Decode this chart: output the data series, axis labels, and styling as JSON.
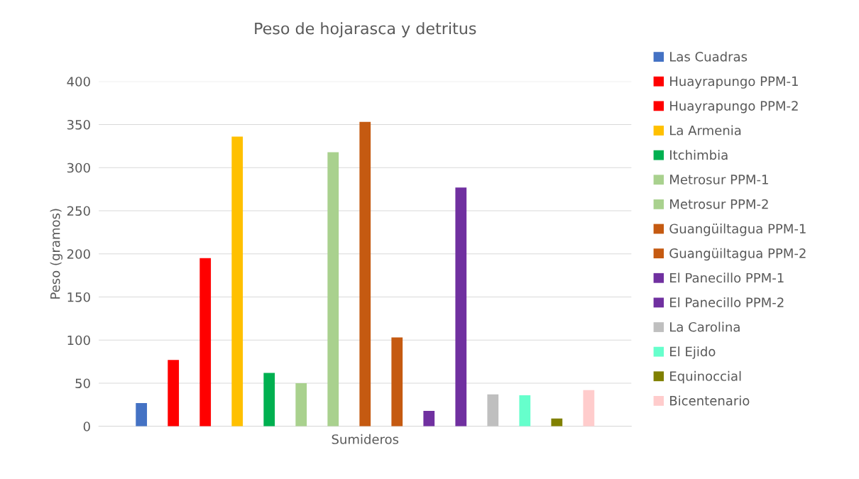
{
  "chart_data": {
    "type": "bar",
    "title": "Peso de hojarasca y detritus",
    "ylabel": "Peso (gramos)",
    "categories": [
      "Sumideros"
    ],
    "series": [
      {
        "name": "Las Cuadras",
        "color": "#4472c4",
        "values": [
          27
        ]
      },
      {
        "name": "Huayrapungo PPM-1",
        "color": "#ff0000",
        "values": [
          77
        ]
      },
      {
        "name": "Huayrapungo PPM-2",
        "color": "#ff0000",
        "values": [
          195
        ]
      },
      {
        "name": "La Armenia",
        "color": "#ffc000",
        "values": [
          336
        ]
      },
      {
        "name": "Itchimbia",
        "color": "#00b050",
        "values": [
          62
        ]
      },
      {
        "name": "Metrosur PPM-1",
        "color": "#a9d18e",
        "values": [
          50
        ]
      },
      {
        "name": "Metrosur PPM-2",
        "color": "#a9d18e",
        "values": [
          318
        ]
      },
      {
        "name": "Guangüiltagua PPM-1",
        "color": "#c55a11",
        "values": [
          353
        ]
      },
      {
        "name": "Guangüiltagua PPM-2",
        "color": "#c55a11",
        "values": [
          103
        ]
      },
      {
        "name": "El Panecillo PPM-1",
        "color": "#7030a0",
        "values": [
          18
        ]
      },
      {
        "name": "El Panecillo PPM-2",
        "color": "#7030a0",
        "values": [
          277
        ]
      },
      {
        "name": "La Carolina",
        "color": "#bfbfbf",
        "values": [
          37
        ]
      },
      {
        "name": "El Ejido",
        "color": "#66ffcc",
        "values": [
          36
        ]
      },
      {
        "name": "Equinoccial",
        "color": "#808000",
        "values": [
          9
        ]
      },
      {
        "name": "Bicentenario",
        "color": "#ffcccc",
        "values": [
          42
        ]
      }
    ],
    "ylim": [
      0,
      400
    ],
    "yticks": [
      0,
      50,
      100,
      150,
      200,
      250,
      300,
      350,
      400
    ],
    "grid": "y",
    "legend": "right"
  }
}
